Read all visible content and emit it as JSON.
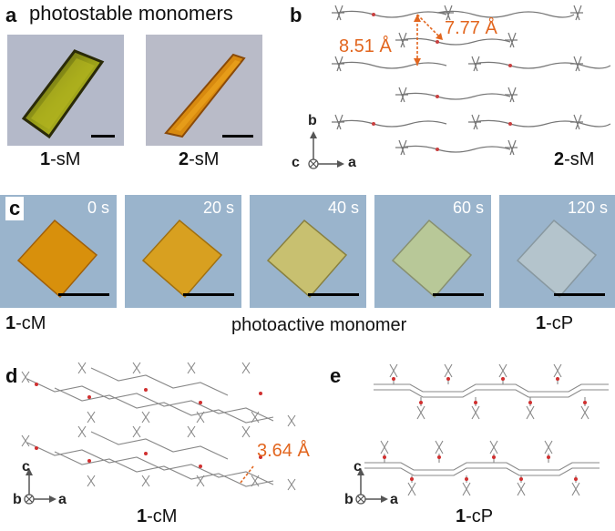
{
  "panel_a": {
    "label": "a",
    "title": "photostable monomers",
    "crystals": [
      {
        "num": "1",
        "suffix": "-sM"
      },
      {
        "num": "2",
        "suffix": "-sM"
      }
    ]
  },
  "panel_b": {
    "label": "b",
    "dist_1": "7.77 Å",
    "dist_2": "8.51 Å",
    "axis_b": "b",
    "axis_c": "c",
    "axis_a": "a",
    "caption_num": "2",
    "caption_suffix": "-sM"
  },
  "panel_c": {
    "label": "c",
    "frames": [
      "0 s",
      "20 s",
      "40 s",
      "60 s",
      "120 s"
    ],
    "left_num": "1",
    "left_suffix": "-cM",
    "middle_text": "photoactive monomer",
    "right_num": "1",
    "right_suffix": "-cP"
  },
  "panel_d": {
    "label": "d",
    "dist": "3.64 Å",
    "axis_c": "c",
    "axis_b": "b",
    "axis_a": "a",
    "caption_num": "1",
    "caption_suffix": "-cM"
  },
  "panel_e": {
    "label": "e",
    "axis_c": "c",
    "axis_b": "b",
    "axis_a": "a",
    "caption_num": "1",
    "caption_suffix": "-cP"
  },
  "colors": {
    "accent_orange": "#e2661f",
    "micro_bg": "#9ab4cc",
    "crystal_green": "#a0a020",
    "crystal_orange": "#d88a10"
  }
}
